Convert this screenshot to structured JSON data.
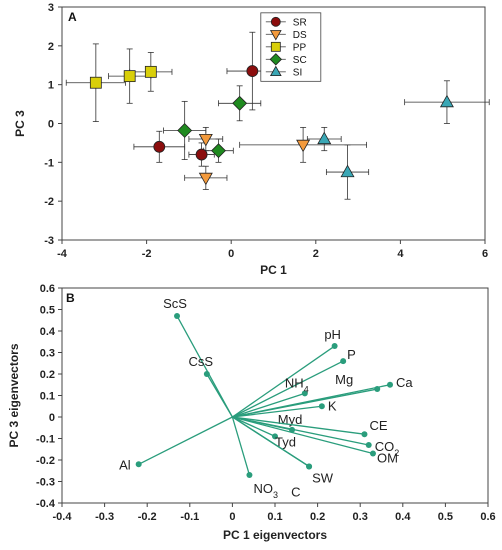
{
  "chart_data": [
    {
      "type": "scatter",
      "panel": "A",
      "xlabel": "PC 1",
      "ylabel": "PC 3",
      "xlim": [
        -4,
        6
      ],
      "ylim": [
        -3,
        3
      ],
      "xticks": [
        "-4",
        "-2",
        "0",
        "2",
        "4",
        "6"
      ],
      "yticks": [
        "-3",
        "-2",
        "-1",
        "0",
        "1",
        "2",
        "3"
      ],
      "grid": false,
      "legend_position": "top-center",
      "series": [
        {
          "name": "SR",
          "color": "#8b0d0d",
          "marker": "circle",
          "points": [
            {
              "x": 0.5,
              "y": 1.35,
              "xerr": 0.6,
              "yerr": 1.0
            },
            {
              "x": -1.7,
              "y": -0.6,
              "xerr": 0.6,
              "yerr": 0.4
            },
            {
              "x": -0.7,
              "y": -0.8,
              "xerr": 0.3,
              "yerr": 0.3
            }
          ]
        },
        {
          "name": "DS",
          "color": "#f39a3c",
          "marker": "triangle-down",
          "points": [
            {
              "x": -0.6,
              "y": -0.4,
              "xerr": 0.4,
              "yerr": 0.3
            },
            {
              "x": -0.6,
              "y": -1.4,
              "xerr": 0.5,
              "yerr": 0.3
            },
            {
              "x": 1.7,
              "y": -0.55,
              "xerr": 1.5,
              "yerr": 0.45
            }
          ]
        },
        {
          "name": "PP",
          "color": "#d9cf0a",
          "marker": "square",
          "points": [
            {
              "x": -3.2,
              "y": 1.05,
              "xerr": 0.7,
              "yerr": 1.0
            },
            {
              "x": -2.4,
              "y": 1.22,
              "xerr": 0.5,
              "yerr": 0.7
            },
            {
              "x": -1.9,
              "y": 1.33,
              "xerr": 0.5,
              "yerr": 0.5
            }
          ]
        },
        {
          "name": "SC",
          "color": "#1f8a1f",
          "marker": "diamond",
          "points": [
            {
              "x": 0.2,
              "y": 0.52,
              "xerr": 0.5,
              "yerr": 0.45
            },
            {
              "x": -1.1,
              "y": -0.18,
              "xerr": 0.5,
              "yerr": 0.75
            },
            {
              "x": -0.3,
              "y": -0.7,
              "xerr": 0.35,
              "yerr": 0.3
            }
          ]
        },
        {
          "name": "SI",
          "color": "#3aa7b5",
          "marker": "triangle-up",
          "points": [
            {
              "x": 5.1,
              "y": 0.55,
              "xerr": 1.0,
              "yerr": 0.55
            },
            {
              "x": 2.2,
              "y": -0.4,
              "xerr": 0.4,
              "yerr": 0.3
            },
            {
              "x": 2.75,
              "y": -1.25,
              "xerr": 0.5,
              "yerr": 0.7
            }
          ]
        }
      ]
    },
    {
      "type": "biplot",
      "panel": "B",
      "xlabel": "PC 1 eigenvectors",
      "ylabel": "PC 3 eigenvectors",
      "xlim": [
        -0.4,
        0.6
      ],
      "ylim": [
        -0.4,
        0.6
      ],
      "xticks": [
        "-0.4",
        "-0.3",
        "-0.2",
        "-0.1",
        "0",
        "0.1",
        "0.2",
        "0.3",
        "0.4",
        "0.5",
        "0.6"
      ],
      "yticks": [
        "-0.4",
        "-0.3",
        "-0.2",
        "-0.1",
        "0",
        "0.1",
        "0.2",
        "0.3",
        "0.4",
        "0.5",
        "0.6"
      ],
      "color": "#2a9d7c",
      "vectors": [
        {
          "label": "ScS",
          "sub": "",
          "x": -0.13,
          "y": 0.47
        },
        {
          "label": "CsS",
          "sub": "",
          "x": -0.06,
          "y": 0.2
        },
        {
          "label": "pH",
          "sub": "",
          "x": 0.24,
          "y": 0.33
        },
        {
          "label": "P",
          "sub": "",
          "x": 0.26,
          "y": 0.26
        },
        {
          "label": "Mg",
          "sub": "",
          "x": 0.34,
          "y": 0.13
        },
        {
          "label": "Ca",
          "sub": "",
          "x": 0.37,
          "y": 0.15
        },
        {
          "label": "NH",
          "sub": "4",
          "x": 0.17,
          "y": 0.11
        },
        {
          "label": "K",
          "sub": "",
          "x": 0.21,
          "y": 0.05
        },
        {
          "label": "Myd",
          "sub": "",
          "x": 0.14,
          "y": -0.06
        },
        {
          "label": "CE",
          "sub": "",
          "x": 0.31,
          "y": -0.08
        },
        {
          "label": "CO",
          "sub": "2",
          "x": 0.32,
          "y": -0.13
        },
        {
          "label": "OM",
          "sub": "",
          "x": 0.33,
          "y": -0.17
        },
        {
          "label": "Tyd",
          "sub": "",
          "x": 0.1,
          "y": -0.09
        },
        {
          "label": "SW",
          "sub": "",
          "x": 0.18,
          "y": -0.23
        },
        {
          "label": "C",
          "sub": "",
          "x": 0.18,
          "y": -0.23
        },
        {
          "label": "NO",
          "sub": "3",
          "x": 0.04,
          "y": -0.27
        },
        {
          "label": "Al",
          "sub": "",
          "x": -0.22,
          "y": -0.22
        }
      ]
    }
  ]
}
